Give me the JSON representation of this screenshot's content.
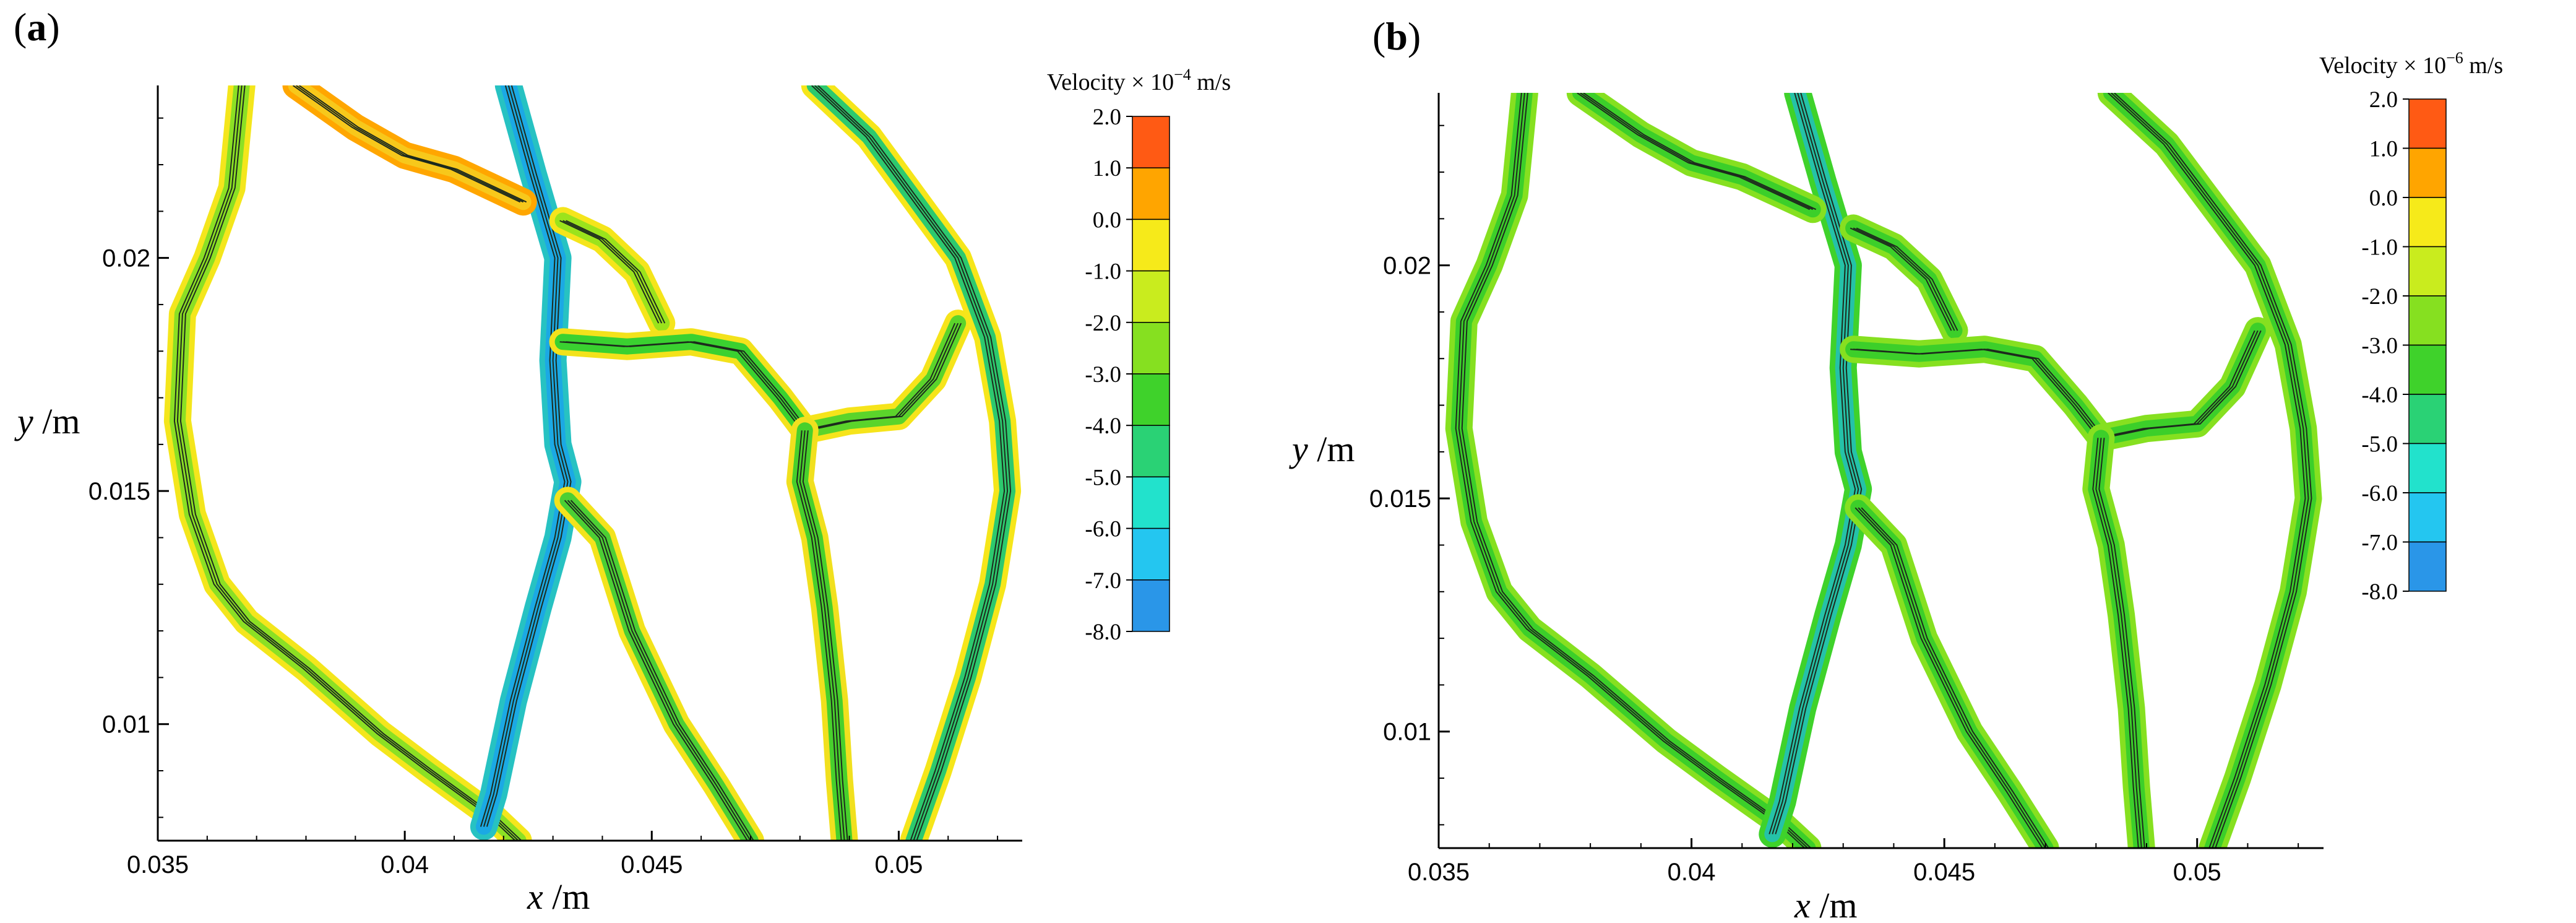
{
  "chart_data": [
    {
      "type": "contour",
      "panel_label_open": "(",
      "panel_letter": "a",
      "panel_label_close": ")",
      "xlabel_var": "x",
      "xlabel_unit": " /m",
      "ylabel_var": "y",
      "ylabel_unit": " /m",
      "xlim": [
        0.035,
        0.0525
      ],
      "ylim": [
        0.0075,
        0.0237
      ],
      "xticks": [
        0.035,
        0.04,
        0.045,
        0.05
      ],
      "xtick_labels": [
        "0.035",
        "0.04",
        "0.045",
        "0.05"
      ],
      "yticks": [
        0.01,
        0.015,
        0.02
      ],
      "ytick_labels": [
        "0.01",
        "0.015",
        "0.02"
      ],
      "colorbar": {
        "title_prefix": "Velocity × 10",
        "title_exponent": "−4",
        "title_unit": " m/s",
        "labels": [
          "2.0",
          "1.0",
          "0.0",
          "-1.0",
          "-2.0",
          "-3.0",
          "-4.0",
          "-5.0",
          "-6.0",
          "-7.0",
          "-8.0"
        ],
        "colors": [
          "#ff5a14",
          "#ffa500",
          "#f6ea1a",
          "#c9ec1e",
          "#86e020",
          "#3fd22b",
          "#2ad275",
          "#22e2cc",
          "#24c6f0",
          "#2a96e8",
          "#1e5ce6"
        ]
      },
      "channels": [
        {
          "name": "left-loop",
          "color": "#8ce024",
          "glow": "#f4e61c",
          "points": [
            [
              0.0367,
              0.0237
            ],
            [
              0.0365,
              0.0215
            ],
            [
              0.036,
              0.02
            ],
            [
              0.0355,
              0.0188
            ],
            [
              0.0354,
              0.0165
            ],
            [
              0.0357,
              0.0145
            ],
            [
              0.0362,
              0.013
            ],
            [
              0.0368,
              0.0122
            ],
            [
              0.038,
              0.0112
            ],
            [
              0.0395,
              0.0098
            ],
            [
              0.0405,
              0.009
            ],
            [
              0.0418,
              0.008
            ],
            [
              0.0423,
              0.0075
            ]
          ]
        },
        {
          "name": "central-vein",
          "color": "#1ba9e4",
          "glow": "#27c2c2",
          "points": [
            [
              0.0421,
              0.0237
            ],
            [
              0.0426,
              0.0218
            ],
            [
              0.0431,
              0.02
            ],
            [
              0.043,
              0.0178
            ],
            [
              0.0431,
              0.016
            ],
            [
              0.0433,
              0.0152
            ],
            [
              0.0431,
              0.014
            ],
            [
              0.0427,
              0.0125
            ],
            [
              0.0422,
              0.0105
            ],
            [
              0.0418,
              0.0085
            ],
            [
              0.0416,
              0.0078
            ]
          ]
        },
        {
          "name": "upper-left-branch",
          "color": "#f7c81b",
          "glow": "#ffa600",
          "points": [
            [
              0.0378,
              0.0237
            ],
            [
              0.039,
              0.0228
            ],
            [
              0.04,
              0.0222
            ],
            [
              0.041,
              0.0219
            ],
            [
              0.0418,
              0.0215
            ],
            [
              0.0424,
              0.0212
            ]
          ]
        },
        {
          "name": "upper-right-branch",
          "color": "#9be31c",
          "glow": "#f5e51b",
          "points": [
            [
              0.0432,
              0.0208
            ],
            [
              0.044,
              0.0204
            ],
            [
              0.0447,
              0.0197
            ],
            [
              0.0452,
              0.0186
            ]
          ]
        },
        {
          "name": "horizontal-cross",
          "color": "#3ad130",
          "glow": "#f3e21b",
          "points": [
            [
              0.0432,
              0.0182
            ],
            [
              0.0445,
              0.0181
            ],
            [
              0.0458,
              0.0182
            ],
            [
              0.0468,
              0.018
            ],
            [
              0.0476,
              0.017
            ],
            [
              0.0481,
              0.0163
            ]
          ]
        },
        {
          "name": "right-junction",
          "color": "#5bd42b",
          "glow": "#f6e41b",
          "points": [
            [
              0.0481,
              0.0163
            ],
            [
              0.049,
              0.0165
            ],
            [
              0.05,
              0.0166
            ],
            [
              0.0507,
              0.0174
            ],
            [
              0.0512,
              0.0186
            ]
          ]
        },
        {
          "name": "lower-right-vein",
          "color": "#48d02c",
          "glow": "#f1e01e",
          "points": [
            [
              0.0481,
              0.0163
            ],
            [
              0.048,
              0.0152
            ],
            [
              0.0483,
              0.014
            ],
            [
              0.0485,
              0.0125
            ],
            [
              0.0487,
              0.0105
            ],
            [
              0.0488,
              0.0088
            ],
            [
              0.0489,
              0.0075
            ]
          ]
        },
        {
          "name": "mid-lower-branch",
          "color": "#4ccf34",
          "glow": "#f3e31c",
          "points": [
            [
              0.0433,
              0.0148
            ],
            [
              0.044,
              0.014
            ],
            [
              0.0446,
              0.012
            ],
            [
              0.0455,
              0.01
            ],
            [
              0.0463,
              0.0087
            ],
            [
              0.047,
              0.0075
            ]
          ]
        },
        {
          "name": "right-loop",
          "color": "#2dc96e",
          "glow": "#f6e61a",
          "points": [
            [
              0.0483,
              0.0237
            ],
            [
              0.0494,
              0.0226
            ],
            [
              0.0503,
              0.0213
            ],
            [
              0.0512,
              0.02
            ],
            [
              0.0518,
              0.0183
            ],
            [
              0.0521,
              0.0165
            ],
            [
              0.0522,
              0.015
            ],
            [
              0.0519,
              0.013
            ],
            [
              0.0514,
              0.011
            ],
            [
              0.0508,
              0.009
            ],
            [
              0.0503,
              0.0075
            ]
          ]
        }
      ]
    },
    {
      "type": "contour",
      "panel_label_open": "(",
      "panel_letter": "b",
      "panel_label_close": ")",
      "xlabel_var": "x",
      "xlabel_unit": " /m",
      "ylabel_var": "y",
      "ylabel_unit": " /m",
      "xlim": [
        0.035,
        0.0525
      ],
      "ylim": [
        0.0075,
        0.0237
      ],
      "xticks": [
        0.035,
        0.04,
        0.045,
        0.05
      ],
      "xtick_labels": [
        "0.035",
        "0.04",
        "0.045",
        "0.05"
      ],
      "yticks": [
        0.01,
        0.015,
        0.02
      ],
      "ytick_labels": [
        "0.01",
        "0.015",
        "0.02"
      ],
      "colorbar": {
        "title_prefix": "Velocity × 10",
        "title_exponent": "−6",
        "title_unit": " m/s",
        "labels": [
          "2.0",
          "1.0",
          "0.0",
          "-1.0",
          "-2.0",
          "-3.0",
          "-4.0",
          "-5.0",
          "-6.0",
          "-7.0",
          "-8.0"
        ],
        "colors": [
          "#ff5a14",
          "#ffa500",
          "#f6ea1a",
          "#c9ec1e",
          "#86e020",
          "#3fd22b",
          "#2ad275",
          "#22e2cc",
          "#24c6f0",
          "#2a96e8",
          "#1e5ce6"
        ]
      },
      "channels": [
        {
          "name": "left-loop",
          "color": "#3ccf2a",
          "glow": "#86e020",
          "points": [
            [
              0.0367,
              0.0237
            ],
            [
              0.0365,
              0.0215
            ],
            [
              0.036,
              0.02
            ],
            [
              0.0355,
              0.0188
            ],
            [
              0.0354,
              0.0165
            ],
            [
              0.0357,
              0.0145
            ],
            [
              0.0362,
              0.013
            ],
            [
              0.0368,
              0.0122
            ],
            [
              0.038,
              0.0112
            ],
            [
              0.0395,
              0.0098
            ],
            [
              0.0405,
              0.009
            ],
            [
              0.0418,
              0.008
            ],
            [
              0.0423,
              0.0075
            ]
          ]
        },
        {
          "name": "central-vein",
          "color": "#25c2a8",
          "glow": "#3fd22b",
          "points": [
            [
              0.0421,
              0.0237
            ],
            [
              0.0426,
              0.0218
            ],
            [
              0.0431,
              0.02
            ],
            [
              0.043,
              0.0178
            ],
            [
              0.0431,
              0.016
            ],
            [
              0.0433,
              0.0152
            ],
            [
              0.0431,
              0.014
            ],
            [
              0.0427,
              0.0125
            ],
            [
              0.0422,
              0.0105
            ],
            [
              0.0418,
              0.0085
            ],
            [
              0.0416,
              0.0078
            ]
          ]
        },
        {
          "name": "upper-left-branch",
          "color": "#3ccf2a",
          "glow": "#86e020",
          "points": [
            [
              0.0378,
              0.0237
            ],
            [
              0.039,
              0.0228
            ],
            [
              0.04,
              0.0222
            ],
            [
              0.041,
              0.0219
            ],
            [
              0.0418,
              0.0215
            ],
            [
              0.0424,
              0.0212
            ]
          ]
        },
        {
          "name": "upper-right-branch",
          "color": "#3ccf2a",
          "glow": "#86e020",
          "points": [
            [
              0.0432,
              0.0208
            ],
            [
              0.044,
              0.0204
            ],
            [
              0.0447,
              0.0197
            ],
            [
              0.0452,
              0.0186
            ]
          ]
        },
        {
          "name": "horizontal-cross",
          "color": "#3ccf2a",
          "glow": "#86e020",
          "points": [
            [
              0.0432,
              0.0182
            ],
            [
              0.0445,
              0.0181
            ],
            [
              0.0458,
              0.0182
            ],
            [
              0.0468,
              0.018
            ],
            [
              0.0476,
              0.017
            ],
            [
              0.0481,
              0.0163
            ]
          ]
        },
        {
          "name": "right-junction",
          "color": "#3ccf2a",
          "glow": "#86e020",
          "points": [
            [
              0.0481,
              0.0163
            ],
            [
              0.049,
              0.0165
            ],
            [
              0.05,
              0.0166
            ],
            [
              0.0507,
              0.0174
            ],
            [
              0.0512,
              0.0186
            ]
          ]
        },
        {
          "name": "lower-right-vein",
          "color": "#3ccf2a",
          "glow": "#86e020",
          "points": [
            [
              0.0481,
              0.0163
            ],
            [
              0.048,
              0.0152
            ],
            [
              0.0483,
              0.014
            ],
            [
              0.0485,
              0.0125
            ],
            [
              0.0487,
              0.0105
            ],
            [
              0.0488,
              0.0088
            ],
            [
              0.0489,
              0.0075
            ]
          ]
        },
        {
          "name": "mid-lower-branch",
          "color": "#3ccf2a",
          "glow": "#86e020",
          "points": [
            [
              0.0433,
              0.0148
            ],
            [
              0.044,
              0.014
            ],
            [
              0.0446,
              0.012
            ],
            [
              0.0455,
              0.01
            ],
            [
              0.0463,
              0.0087
            ],
            [
              0.047,
              0.0075
            ]
          ]
        },
        {
          "name": "right-loop",
          "color": "#3ccf2a",
          "glow": "#86e020",
          "points": [
            [
              0.0483,
              0.0237
            ],
            [
              0.0494,
              0.0226
            ],
            [
              0.0503,
              0.0213
            ],
            [
              0.0512,
              0.02
            ],
            [
              0.0518,
              0.0183
            ],
            [
              0.0521,
              0.0165
            ],
            [
              0.0522,
              0.015
            ],
            [
              0.0519,
              0.013
            ],
            [
              0.0514,
              0.011
            ],
            [
              0.0508,
              0.009
            ],
            [
              0.0503,
              0.0075
            ]
          ]
        }
      ]
    }
  ]
}
